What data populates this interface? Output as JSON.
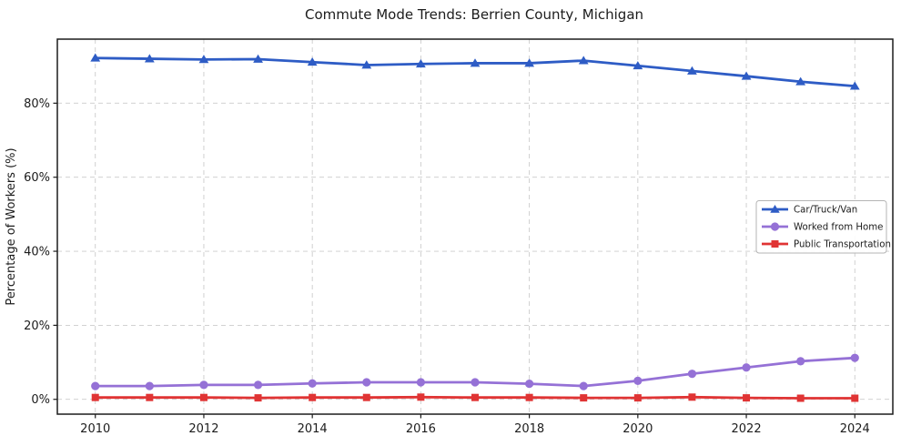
{
  "chart_data": {
    "type": "line",
    "title": "Commute Mode Trends: Berrien County, Michigan",
    "xlabel": "",
    "ylabel": "Percentage of Workers (%)",
    "x": [
      2010,
      2011,
      2012,
      2013,
      2014,
      2015,
      2016,
      2017,
      2018,
      2019,
      2020,
      2021,
      2022,
      2023,
      2024
    ],
    "series": [
      {
        "name": "Car/Truck/Van",
        "color": "#2e5cc5",
        "marker": "triangle",
        "values": [
          92.2,
          92.0,
          91.8,
          91.9,
          91.1,
          90.3,
          90.6,
          90.8,
          90.8,
          91.5,
          90.1,
          88.7,
          87.3,
          85.8,
          84.6
        ]
      },
      {
        "name": "Worked from Home",
        "color": "#9571d6",
        "marker": "circle",
        "values": [
          3.6,
          3.6,
          3.9,
          3.9,
          4.3,
          4.6,
          4.6,
          4.6,
          4.2,
          3.6,
          5.0,
          6.9,
          8.6,
          10.3,
          11.2
        ]
      },
      {
        "name": "Public Transportation",
        "color": "#e03434",
        "marker": "square",
        "values": [
          0.5,
          0.5,
          0.5,
          0.4,
          0.5,
          0.5,
          0.6,
          0.5,
          0.5,
          0.4,
          0.4,
          0.6,
          0.4,
          0.3,
          0.3
        ]
      }
    ],
    "xticks": [
      2010,
      2012,
      2014,
      2016,
      2018,
      2020,
      2022,
      2024
    ],
    "yticks": [
      {
        "value": 0,
        "label": "0%"
      },
      {
        "value": 20,
        "label": "20%"
      },
      {
        "value": 40,
        "label": "40%"
      },
      {
        "value": 60,
        "label": "60%"
      },
      {
        "value": 80,
        "label": "80%"
      }
    ],
    "xlim": [
      2009.3,
      2024.7
    ],
    "ylim": [
      -4.0,
      97.3
    ],
    "grid": true,
    "grid_color": "#cbcbcb",
    "axis_color": "#1c1c1c",
    "background": "#ffffff",
    "legend": {
      "position": "right-center",
      "entries": [
        "Car/Truck/Van",
        "Worked from Home",
        "Public Transportation"
      ],
      "background": "#ffffff",
      "border_color": "#b4b4b4"
    }
  }
}
